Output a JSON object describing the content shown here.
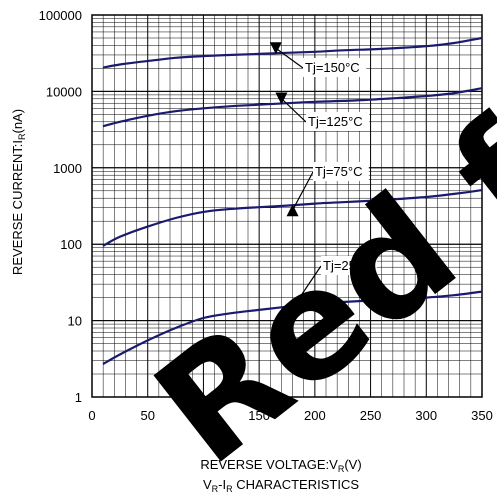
{
  "chart_data": {
    "type": "line",
    "title": "",
    "xlabel": {
      "main": "REVERSE VOLTAGE:V",
      "sub": "R",
      "unit": "(V)"
    },
    "ylabel": {
      "main": "REVERSE CURRENT:I",
      "sub": "R",
      "unit": "(nA)"
    },
    "caption": {
      "a": "V",
      "a_sub": "R",
      "sep": "-I",
      "b_sub": "R",
      "rest": " CHARACTERISTICS"
    },
    "xlim": [
      0,
      350
    ],
    "ylim": [
      1,
      100000
    ],
    "yscale": "log",
    "grid": true,
    "x_ticks": [
      "0",
      "50",
      "100",
      "150",
      "200",
      "250",
      "300",
      "350"
    ],
    "y_ticks": [
      "1",
      "10",
      "100",
      "1000",
      "10000",
      "100000"
    ],
    "x": [
      10,
      25,
      50,
      75,
      100,
      125,
      150,
      175,
      200,
      225,
      250,
      275,
      300,
      325,
      350
    ],
    "series": [
      {
        "name": "Tj=150°C",
        "color": "#1a1a6e",
        "values": [
          20500,
          22500,
          25000,
          27500,
          29000,
          30000,
          31000,
          32000,
          33000,
          34500,
          35500,
          37000,
          39000,
          43000,
          50000
        ]
      },
      {
        "name": "Tj=125°C",
        "color": "#1a1a6e",
        "values": [
          3500,
          4000,
          4800,
          5500,
          6000,
          6400,
          6700,
          7000,
          7300,
          7500,
          7800,
          8200,
          8700,
          9500,
          11000
        ]
      },
      {
        "name": "Tj=75°C",
        "color": "#1a1a6e",
        "values": [
          95,
          125,
          170,
          220,
          265,
          290,
          305,
          320,
          340,
          355,
          370,
          390,
          415,
          455,
          510
        ]
      },
      {
        "name": "Tj=25°C",
        "color": "#1a1a6e",
        "values": [
          2.7,
          3.6,
          5.5,
          8.0,
          10.8,
          12.5,
          13.8,
          15.2,
          16.5,
          17.5,
          18.3,
          19.0,
          20.0,
          21.5,
          24.0
        ]
      }
    ],
    "annotations": [
      {
        "text": "Tj=150°C",
        "series": 0,
        "x": 165
      },
      {
        "text": "Tj=125°C",
        "series": 1,
        "x": 170
      },
      {
        "text": "Tj=75°C",
        "series": 2,
        "x": 180
      },
      {
        "text": "Tj=25°C",
        "series": 3,
        "x": 178
      }
    ],
    "watermark": "Red fr"
  }
}
